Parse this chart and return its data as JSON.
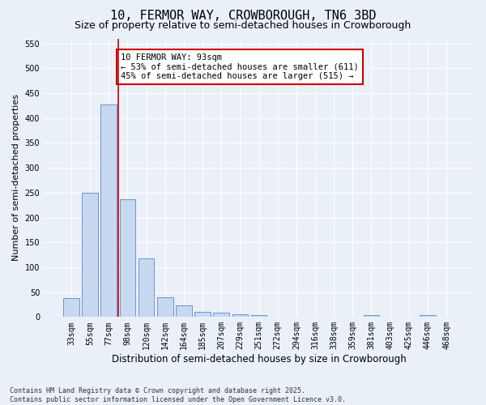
{
  "title": "10, FERMOR WAY, CROWBOROUGH, TN6 3BD",
  "subtitle": "Size of property relative to semi-detached houses in Crowborough",
  "xlabel": "Distribution of semi-detached houses by size in Crowborough",
  "ylabel": "Number of semi-detached properties",
  "categories": [
    "33sqm",
    "55sqm",
    "77sqm",
    "98sqm",
    "120sqm",
    "142sqm",
    "164sqm",
    "185sqm",
    "207sqm",
    "229sqm",
    "251sqm",
    "272sqm",
    "294sqm",
    "316sqm",
    "338sqm",
    "359sqm",
    "381sqm",
    "403sqm",
    "425sqm",
    "446sqm",
    "468sqm"
  ],
  "values": [
    38,
    250,
    428,
    237,
    118,
    40,
    24,
    10,
    8,
    6,
    4,
    0,
    0,
    0,
    0,
    0,
    3,
    0,
    0,
    4,
    0
  ],
  "bar_color": "#c6d9f1",
  "bar_edge_color": "#4472c4",
  "vline_color": "#cc0000",
  "vline_x_index": 2.5,
  "annotation_text": "10 FERMOR WAY: 93sqm\n← 53% of semi-detached houses are smaller (611)\n45% of semi-detached houses are larger (515) →",
  "annotation_box_color": "#ffffff",
  "annotation_box_edge_color": "#cc0000",
  "ylim": [
    0,
    560
  ],
  "yticks": [
    0,
    50,
    100,
    150,
    200,
    250,
    300,
    350,
    400,
    450,
    500,
    550
  ],
  "background_color": "#eaf0f8",
  "grid_color": "#ffffff",
  "footer": "Contains HM Land Registry data © Crown copyright and database right 2025.\nContains public sector information licensed under the Open Government Licence v3.0.",
  "title_fontsize": 11,
  "subtitle_fontsize": 9,
  "xlabel_fontsize": 8.5,
  "ylabel_fontsize": 8,
  "tick_fontsize": 7,
  "annotation_fontsize": 7.5,
  "footer_fontsize": 6
}
